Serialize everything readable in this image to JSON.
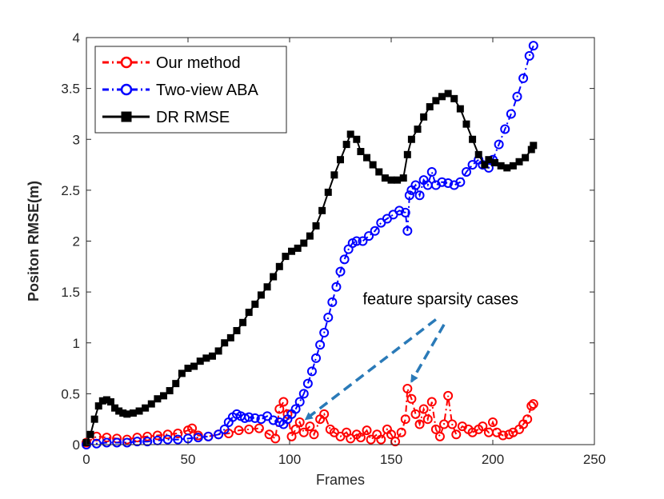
{
  "chart_data": {
    "type": "line",
    "xlabel": "Frames",
    "ylabel": "Positon RMSE(m)",
    "xlim": [
      0,
      250
    ],
    "ylim": [
      0,
      4
    ],
    "xticks": [
      "0",
      "50",
      "100",
      "150",
      "200",
      "250"
    ],
    "yticks": [
      "0",
      "0.5",
      "1",
      "1.5",
      "2",
      "2.5",
      "3",
      "3.5",
      "4"
    ],
    "grid": false,
    "legend_position": "top-left",
    "series": [
      {
        "name": "Our method",
        "color": "#ff0000",
        "marker": "circle",
        "line_style": "dash-dot",
        "points": [
          [
            0,
            0.02
          ],
          [
            5,
            0.08
          ],
          [
            10,
            0.07
          ],
          [
            15,
            0.06
          ],
          [
            20,
            0.05
          ],
          [
            25,
            0.07
          ],
          [
            30,
            0.08
          ],
          [
            35,
            0.09
          ],
          [
            40,
            0.1
          ],
          [
            45,
            0.11
          ],
          [
            50,
            0.14
          ],
          [
            52,
            0.16
          ],
          [
            55,
            0.09
          ],
          [
            60,
            0.08
          ],
          [
            65,
            0.1
          ],
          [
            70,
            0.11
          ],
          [
            75,
            0.14
          ],
          [
            80,
            0.15
          ],
          [
            85,
            0.16
          ],
          [
            90,
            0.1
          ],
          [
            93,
            0.06
          ],
          [
            95,
            0.35
          ],
          [
            97,
            0.42
          ],
          [
            99,
            0.3
          ],
          [
            101,
            0.08
          ],
          [
            103,
            0.15
          ],
          [
            105,
            0.22
          ],
          [
            107,
            0.12
          ],
          [
            110,
            0.18
          ],
          [
            112,
            0.1
          ],
          [
            115,
            0.25
          ],
          [
            117,
            0.3
          ],
          [
            120,
            0.15
          ],
          [
            122,
            0.12
          ],
          [
            125,
            0.08
          ],
          [
            128,
            0.12
          ],
          [
            130,
            0.06
          ],
          [
            133,
            0.1
          ],
          [
            135,
            0.07
          ],
          [
            138,
            0.14
          ],
          [
            140,
            0.05
          ],
          [
            143,
            0.1
          ],
          [
            145,
            0.05
          ],
          [
            148,
            0.15
          ],
          [
            150,
            0.1
          ],
          [
            152,
            0.03
          ],
          [
            155,
            0.12
          ],
          [
            157,
            0.25
          ],
          [
            158,
            0.55
          ],
          [
            160,
            0.45
          ],
          [
            162,
            0.3
          ],
          [
            164,
            0.2
          ],
          [
            166,
            0.35
          ],
          [
            168,
            0.25
          ],
          [
            170,
            0.42
          ],
          [
            172,
            0.15
          ],
          [
            174,
            0.08
          ],
          [
            176,
            0.2
          ],
          [
            178,
            0.48
          ],
          [
            180,
            0.2
          ],
          [
            182,
            0.1
          ],
          [
            185,
            0.18
          ],
          [
            188,
            0.15
          ],
          [
            190,
            0.12
          ],
          [
            193,
            0.15
          ],
          [
            195,
            0.18
          ],
          [
            198,
            0.12
          ],
          [
            200,
            0.22
          ],
          [
            202,
            0.12
          ],
          [
            205,
            0.09
          ],
          [
            208,
            0.1
          ],
          [
            210,
            0.12
          ],
          [
            213,
            0.15
          ],
          [
            215,
            0.2
          ],
          [
            217,
            0.25
          ],
          [
            219,
            0.38
          ],
          [
            220,
            0.4
          ]
        ]
      },
      {
        "name": "Two-view ABA",
        "color": "#0000ff",
        "marker": "circle",
        "line_style": "dash-dot",
        "points": [
          [
            0,
            0.0
          ],
          [
            5,
            0.01
          ],
          [
            10,
            0.02
          ],
          [
            15,
            0.02
          ],
          [
            20,
            0.02
          ],
          [
            25,
            0.03
          ],
          [
            30,
            0.03
          ],
          [
            35,
            0.04
          ],
          [
            40,
            0.05
          ],
          [
            45,
            0.05
          ],
          [
            50,
            0.06
          ],
          [
            55,
            0.07
          ],
          [
            60,
            0.08
          ],
          [
            65,
            0.1
          ],
          [
            68,
            0.15
          ],
          [
            70,
            0.22
          ],
          [
            72,
            0.27
          ],
          [
            74,
            0.3
          ],
          [
            76,
            0.28
          ],
          [
            78,
            0.26
          ],
          [
            80,
            0.27
          ],
          [
            83,
            0.26
          ],
          [
            86,
            0.25
          ],
          [
            89,
            0.28
          ],
          [
            92,
            0.24
          ],
          [
            95,
            0.22
          ],
          [
            97,
            0.2
          ],
          [
            99,
            0.25
          ],
          [
            101,
            0.3
          ],
          [
            103,
            0.35
          ],
          [
            105,
            0.42
          ],
          [
            107,
            0.5
          ],
          [
            109,
            0.6
          ],
          [
            111,
            0.72
          ],
          [
            113,
            0.85
          ],
          [
            115,
            0.98
          ],
          [
            117,
            1.1
          ],
          [
            119,
            1.25
          ],
          [
            121,
            1.4
          ],
          [
            123,
            1.55
          ],
          [
            125,
            1.7
          ],
          [
            127,
            1.82
          ],
          [
            129,
            1.92
          ],
          [
            131,
            1.98
          ],
          [
            133,
            2.0
          ],
          [
            136,
            2.0
          ],
          [
            139,
            2.05
          ],
          [
            142,
            2.1
          ],
          [
            145,
            2.18
          ],
          [
            148,
            2.22
          ],
          [
            151,
            2.26
          ],
          [
            154,
            2.3
          ],
          [
            157,
            2.28
          ],
          [
            158,
            2.1
          ],
          [
            159,
            2.45
          ],
          [
            160,
            2.5
          ],
          [
            162,
            2.55
          ],
          [
            164,
            2.45
          ],
          [
            166,
            2.6
          ],
          [
            168,
            2.55
          ],
          [
            170,
            2.68
          ],
          [
            172,
            2.55
          ],
          [
            175,
            2.58
          ],
          [
            178,
            2.57
          ],
          [
            181,
            2.55
          ],
          [
            184,
            2.58
          ],
          [
            187,
            2.68
          ],
          [
            190,
            2.75
          ],
          [
            193,
            2.8
          ],
          [
            195,
            2.75
          ],
          [
            198,
            2.72
          ],
          [
            200,
            2.8
          ],
          [
            203,
            2.95
          ],
          [
            206,
            3.1
          ],
          [
            209,
            3.25
          ],
          [
            212,
            3.42
          ],
          [
            215,
            3.6
          ],
          [
            218,
            3.82
          ],
          [
            220,
            3.92
          ]
        ]
      },
      {
        "name": "DR RMSE",
        "color": "#000000",
        "marker": "square",
        "line_style": "solid",
        "points": [
          [
            0,
            0.02
          ],
          [
            2,
            0.1
          ],
          [
            4,
            0.25
          ],
          [
            6,
            0.38
          ],
          [
            8,
            0.43
          ],
          [
            10,
            0.44
          ],
          [
            12,
            0.42
          ],
          [
            14,
            0.36
          ],
          [
            16,
            0.33
          ],
          [
            18,
            0.31
          ],
          [
            20,
            0.3
          ],
          [
            23,
            0.31
          ],
          [
            26,
            0.33
          ],
          [
            29,
            0.36
          ],
          [
            32,
            0.4
          ],
          [
            35,
            0.45
          ],
          [
            38,
            0.48
          ],
          [
            41,
            0.53
          ],
          [
            44,
            0.6
          ],
          [
            47,
            0.7
          ],
          [
            50,
            0.75
          ],
          [
            53,
            0.77
          ],
          [
            56,
            0.82
          ],
          [
            59,
            0.85
          ],
          [
            62,
            0.87
          ],
          [
            65,
            0.92
          ],
          [
            68,
            1.0
          ],
          [
            71,
            1.05
          ],
          [
            74,
            1.12
          ],
          [
            77,
            1.2
          ],
          [
            80,
            1.3
          ],
          [
            83,
            1.38
          ],
          [
            86,
            1.47
          ],
          [
            89,
            1.55
          ],
          [
            92,
            1.65
          ],
          [
            95,
            1.75
          ],
          [
            98,
            1.85
          ],
          [
            101,
            1.9
          ],
          [
            104,
            1.93
          ],
          [
            107,
            1.98
          ],
          [
            110,
            2.05
          ],
          [
            113,
            2.15
          ],
          [
            116,
            2.3
          ],
          [
            119,
            2.48
          ],
          [
            122,
            2.65
          ],
          [
            125,
            2.8
          ],
          [
            128,
            2.95
          ],
          [
            130,
            3.05
          ],
          [
            133,
            3.0
          ],
          [
            135,
            2.88
          ],
          [
            138,
            2.82
          ],
          [
            141,
            2.75
          ],
          [
            144,
            2.68
          ],
          [
            147,
            2.62
          ],
          [
            150,
            2.6
          ],
          [
            153,
            2.6
          ],
          [
            156,
            2.62
          ],
          [
            158,
            2.85
          ],
          [
            160,
            3.0
          ],
          [
            163,
            3.1
          ],
          [
            166,
            3.22
          ],
          [
            169,
            3.32
          ],
          [
            172,
            3.38
          ],
          [
            175,
            3.42
          ],
          [
            178,
            3.45
          ],
          [
            181,
            3.4
          ],
          [
            184,
            3.3
          ],
          [
            187,
            3.15
          ],
          [
            190,
            3.0
          ],
          [
            193,
            2.85
          ],
          [
            196,
            2.75
          ],
          [
            198,
            2.8
          ],
          [
            201,
            2.77
          ],
          [
            204,
            2.74
          ],
          [
            207,
            2.72
          ],
          [
            210,
            2.74
          ],
          [
            213,
            2.78
          ],
          [
            216,
            2.82
          ],
          [
            219,
            2.9
          ],
          [
            220,
            2.94
          ]
        ]
      }
    ],
    "annotations": [
      {
        "text": "feature sparsity cases",
        "x": 136,
        "y": 1.38
      }
    ],
    "arrows": [
      {
        "from": [
          172,
          1.23
        ],
        "to": [
          108,
          0.25
        ]
      },
      {
        "from": [
          176,
          1.18
        ],
        "to": [
          160,
          0.62
        ]
      }
    ],
    "arrow_color": "#2a7ab8"
  }
}
